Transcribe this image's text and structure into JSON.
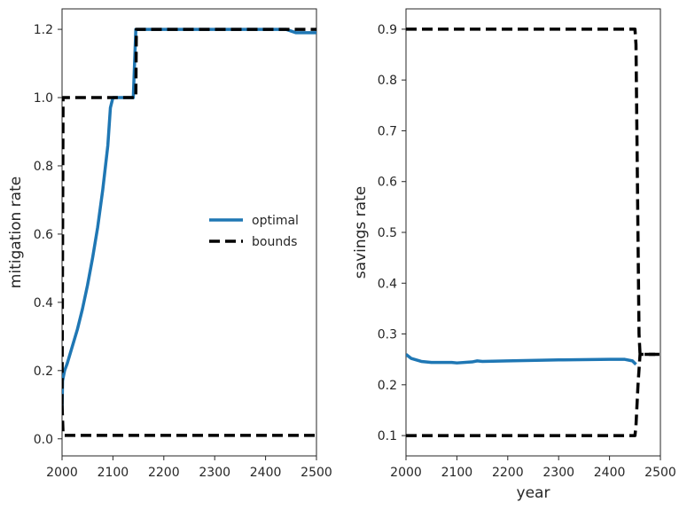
{
  "chart_data": [
    {
      "type": "line",
      "xlabel": "",
      "ylabel": "mitigation rate",
      "xlim": [
        2000,
        2500
      ],
      "ylim": [
        -0.05,
        1.26
      ],
      "xticks": [
        2000,
        2100,
        2200,
        2300,
        2400,
        2500
      ],
      "yticks": [
        0.0,
        0.2,
        0.4,
        0.6,
        0.8,
        1.0,
        1.2
      ],
      "ytick_labels": [
        "0.0",
        "0.2",
        "0.4",
        "0.6",
        "0.8",
        "1.0",
        "1.2"
      ],
      "legend": {
        "placement": "center-right",
        "entries": [
          "optimal",
          "bounds"
        ]
      },
      "series": [
        {
          "name": "optimal",
          "style": "solid",
          "color": "#1f77b4",
          "x": [
            2000,
            2001,
            2005,
            2010,
            2020,
            2030,
            2040,
            2050,
            2060,
            2070,
            2080,
            2090,
            2095,
            2100,
            2105,
            2140,
            2145,
            2150,
            2200,
            2300,
            2400,
            2440,
            2460,
            2480,
            2500
          ],
          "y": [
            0.08,
            0.17,
            0.2,
            0.22,
            0.27,
            0.32,
            0.38,
            0.45,
            0.53,
            0.62,
            0.73,
            0.86,
            0.97,
            1.0,
            1.0,
            1.0,
            1.2,
            1.2,
            1.2,
            1.2,
            1.2,
            1.2,
            1.19,
            1.19,
            1.19
          ]
        },
        {
          "name": "bounds",
          "style": "dashed",
          "color": "#000000",
          "x": [
            2000,
            2002,
            2003,
            2145,
            2146,
            2500
          ],
          "y": [
            0.1,
            1.0,
            1.0,
            1.0,
            1.2,
            1.2
          ]
        },
        {
          "name": "bounds",
          "style": "dashed",
          "color": "#000000",
          "x": [
            2000,
            2002,
            2003,
            2500
          ],
          "y": [
            0.1,
            0.015,
            0.01,
            0.01
          ]
        }
      ]
    },
    {
      "type": "line",
      "xlabel": "year",
      "ylabel": "savings rate",
      "xlim": [
        2000,
        2500
      ],
      "ylim": [
        0.06,
        0.94
      ],
      "xticks": [
        2000,
        2100,
        2200,
        2300,
        2400,
        2500
      ],
      "yticks": [
        0.1,
        0.2,
        0.3,
        0.4,
        0.5,
        0.6,
        0.7,
        0.8,
        0.9
      ],
      "ytick_labels": [
        "0.1",
        "0.2",
        "0.3",
        "0.4",
        "0.5",
        "0.6",
        "0.7",
        "0.8",
        "0.9"
      ],
      "series": [
        {
          "name": "optimal",
          "style": "solid",
          "color": "#1f77b4",
          "x": [
            2000,
            2010,
            2030,
            2050,
            2090,
            2100,
            2130,
            2140,
            2150,
            2200,
            2300,
            2400,
            2430,
            2445,
            2452
          ],
          "y": [
            0.26,
            0.252,
            0.246,
            0.244,
            0.244,
            0.243,
            0.245,
            0.247,
            0.246,
            0.247,
            0.249,
            0.25,
            0.25,
            0.247,
            0.24
          ]
        },
        {
          "name": "bounds",
          "style": "dashed",
          "color": "#000000",
          "x": [
            2000,
            2450,
            2452,
            2458,
            2460,
            2500
          ],
          "y": [
            0.9,
            0.9,
            0.87,
            0.3,
            0.26,
            0.26
          ]
        },
        {
          "name": "bounds",
          "style": "dashed",
          "color": "#000000",
          "x": [
            2000,
            2450,
            2452,
            2456,
            2460,
            2500
          ],
          "y": [
            0.1,
            0.1,
            0.12,
            0.2,
            0.26,
            0.26
          ]
        }
      ]
    }
  ]
}
